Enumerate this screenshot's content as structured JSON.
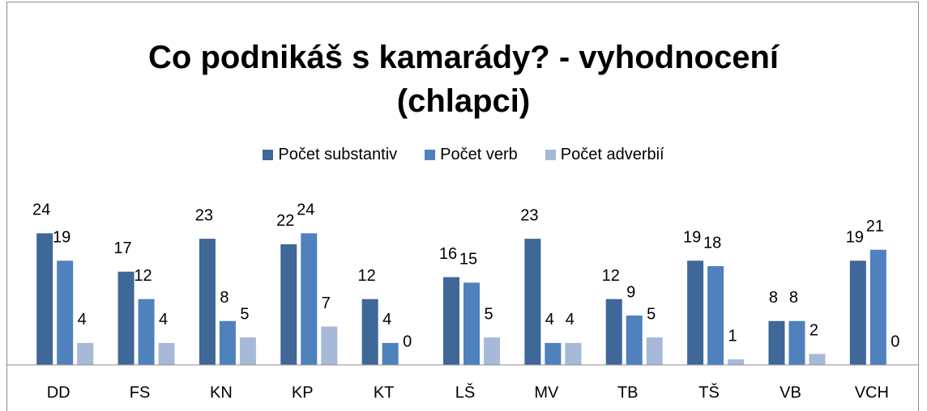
{
  "chart_data": {
    "type": "bar",
    "title": "Co podnikáš s kamarády? - vyhodnocení (chlapci)",
    "categories": [
      "DD",
      "FS",
      "KN",
      "KP",
      "KT",
      "LŠ",
      "MV",
      "TB",
      "TŠ",
      "VB",
      "VCH"
    ],
    "series": [
      {
        "name": "Počet substantiv",
        "color": "#3f6797",
        "values": [
          24,
          17,
          23,
          22,
          12,
          16,
          23,
          12,
          19,
          8,
          19
        ]
      },
      {
        "name": "Počet verb",
        "color": "#4f81bd",
        "values": [
          19,
          12,
          8,
          24,
          4,
          15,
          4,
          9,
          18,
          8,
          21
        ]
      },
      {
        "name": "Počet adverbií",
        "color": "#a7b9d9",
        "values": [
          4,
          4,
          5,
          7,
          0,
          5,
          4,
          5,
          1,
          2,
          0
        ]
      }
    ],
    "ylim": [
      0,
      27
    ],
    "legend": "top"
  }
}
